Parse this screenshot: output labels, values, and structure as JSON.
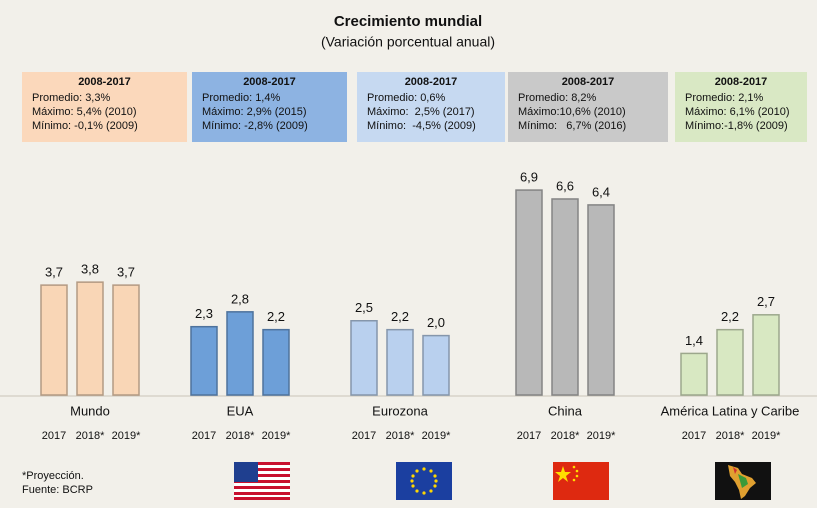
{
  "chart_data": {
    "type": "bar",
    "title": "Crecimiento mundial",
    "subtitle": "(Variación porcentual anual)",
    "years": [
      "2017",
      "2018*",
      "2019*"
    ],
    "groups": [
      {
        "name": "Mundo",
        "color": "#f9d6b6",
        "values": [
          3.7,
          3.8,
          3.7
        ],
        "value_labels": [
          "3,7",
          "3,8",
          "3,7"
        ],
        "box": {
          "color": "#fbd8bb",
          "heading": "2008-2017",
          "lines": [
            "Promedio: 3,3%",
            "Máximo: 5,4% (2010)",
            "Mínimo: -0,1% (2009)"
          ]
        }
      },
      {
        "name": "EUA",
        "color": "#6d9fd8",
        "values": [
          2.3,
          2.8,
          2.2
        ],
        "value_labels": [
          "2,3",
          "2,8",
          "2,2"
        ],
        "box": {
          "color": "#8db3e2",
          "heading": "2008-2017",
          "lines": [
            "Promedio: 1,4%",
            "Máximo: 2,9% (2015)",
            "Mínimo: -2,8% (2009)"
          ]
        }
      },
      {
        "name": "Eurozona",
        "color": "#b9d0ee",
        "values": [
          2.5,
          2.2,
          2.0
        ],
        "value_labels": [
          "2,5",
          "2,2",
          "2,0"
        ],
        "box": {
          "color": "#c6d9f1",
          "heading": "2008-2017",
          "lines": [
            "Promedio: 0,6%",
            "Máximo:  2,5% (2017)",
            "Mínimo:  -4,5% (2009)"
          ]
        }
      },
      {
        "name": "China",
        "color": "#b8b8b8",
        "values": [
          6.9,
          6.6,
          6.4
        ],
        "value_labels": [
          "6,9",
          "6,6",
          "6,4"
        ],
        "box": {
          "color": "#c9c9c9",
          "heading": "2008-2017",
          "lines": [
            "Promedio: 8,2%",
            "Máximo:10,6% (2010)",
            "Mínimo:   6,7% (2016)"
          ]
        }
      },
      {
        "name": "América Latina y Caribe",
        "color": "#d8e8c2",
        "values": [
          1.4,
          2.2,
          2.7
        ],
        "value_labels": [
          "1,4",
          "2,2",
          "2,7"
        ],
        "box": {
          "color": "#d9e8c4",
          "heading": "2008-2017",
          "lines": [
            "Promedio: 2,1%",
            "Máximo: 6,1% (2010)",
            "Mínimo:-1,8% (2009)"
          ]
        }
      }
    ],
    "notes": [
      "*Proyección.",
      "Fuente: BCRP"
    ]
  }
}
